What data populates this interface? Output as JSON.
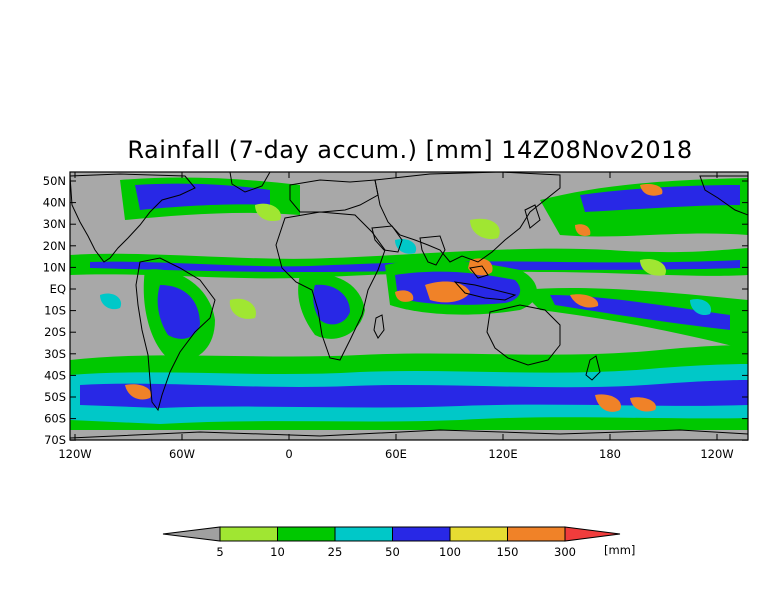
{
  "title": "Rainfall (7-day accum.) [mm] 14Z08Nov2018",
  "lat_labels": [
    "50N",
    "40N",
    "30N",
    "20N",
    "10N",
    "EQ",
    "10S",
    "20S",
    "30S",
    "40S",
    "50S",
    "60S",
    "70S"
  ],
  "lon_labels": [
    "120W",
    "60W",
    "0",
    "60E",
    "120E",
    "180",
    "120W"
  ],
  "colorbar": {
    "unit_label": "[mm]",
    "ticks": [
      "5",
      "10",
      "25",
      "50",
      "100",
      "150",
      "300"
    ],
    "colors": {
      "below": "#a0a0a0",
      "c5": "#a0e632",
      "c10": "#00c800",
      "c25": "#00c8c8",
      "c50": "#2828e6",
      "c100": "#e6dc32",
      "c150": "#f08228",
      "c300": "#f03c3c"
    }
  },
  "map_colors": {
    "background": "#a8a8a8",
    "land_outline": "#000000"
  }
}
